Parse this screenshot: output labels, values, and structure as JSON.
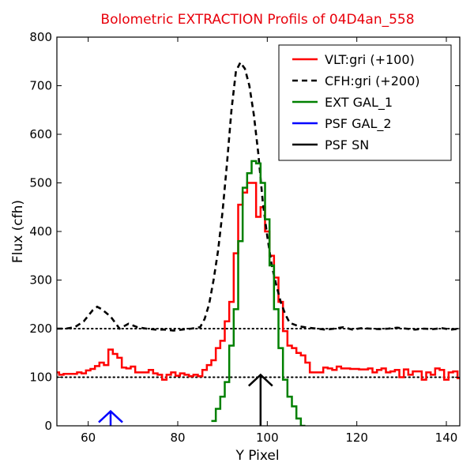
{
  "chart_data": {
    "type": "line",
    "title": "Bolometric EXTRACTION Profils of 04D4an_558",
    "xlabel": "Y Pixel",
    "ylabel": "Flux (cfh)",
    "xlim": [
      53,
      143
    ],
    "ylim": [
      0,
      800
    ],
    "xticks": [
      60,
      80,
      100,
      120,
      140
    ],
    "yticks": [
      0,
      100,
      200,
      300,
      400,
      500,
      600,
      700,
      800
    ],
    "grid": false,
    "legend_position": "top-right",
    "reference_lines": [
      100,
      200
    ],
    "series": [
      {
        "name": "VLT:gri (+100)",
        "style": "steps",
        "color": "#ff0000",
        "x": [
          53,
          54,
          55,
          56,
          57,
          58,
          59,
          60,
          61,
          62,
          63,
          64,
          65,
          66,
          67,
          68,
          69,
          70,
          71,
          72,
          73,
          74,
          75,
          76,
          77,
          78,
          79,
          80,
          81,
          82,
          83,
          84,
          85,
          86,
          87,
          88,
          89,
          90,
          91,
          92,
          93,
          94,
          95,
          96,
          97,
          98,
          99,
          100,
          101,
          102,
          103,
          104,
          105,
          106,
          107,
          108,
          109,
          110,
          111,
          112,
          113,
          114,
          115,
          116,
          117,
          118,
          119,
          120,
          121,
          122,
          123,
          124,
          125,
          126,
          127,
          128,
          129,
          130,
          131,
          132,
          133,
          134,
          135,
          136,
          137,
          138,
          139,
          140,
          141,
          142,
          143
        ],
        "y": [
          110,
          105,
          107,
          107,
          107,
          110,
          108,
          114,
          117,
          123,
          130,
          125,
          157,
          148,
          140,
          120,
          118,
          122,
          110,
          110,
          110,
          115,
          108,
          105,
          95,
          105,
          110,
          103,
          108,
          105,
          102,
          105,
          102,
          115,
          125,
          135,
          160,
          175,
          215,
          255,
          355,
          455,
          480,
          500,
          500,
          430,
          450,
          400,
          350,
          305,
          255,
          195,
          165,
          160,
          150,
          145,
          130,
          110,
          110,
          110,
          120,
          118,
          115,
          122,
          118,
          118,
          117,
          117,
          116,
          116,
          118,
          110,
          115,
          118,
          110,
          112,
          115,
          100,
          116,
          105,
          112,
          112,
          95,
          110,
          105,
          118,
          115,
          95,
          110,
          112,
          98
        ],
        "offset_shown": 100
      },
      {
        "name": "CFH:gri (+200)",
        "style": "dashed",
        "color": "#000000",
        "x": [
          53,
          55,
          57,
          59,
          61,
          62,
          63,
          65,
          67,
          69,
          71,
          73,
          75,
          77,
          79,
          81,
          83,
          85,
          86,
          87,
          88,
          89,
          90,
          91,
          92,
          93,
          94,
          95,
          96,
          97,
          98,
          99,
          100,
          101,
          102,
          103,
          104,
          105,
          107,
          109,
          111,
          113,
          115,
          117,
          119,
          121,
          123,
          125,
          127,
          129,
          131,
          133,
          135,
          137,
          139,
          141,
          143
        ],
        "y": [
          200,
          200,
          203,
          215,
          238,
          245,
          240,
          225,
          200,
          210,
          203,
          200,
          198,
          198,
          196,
          198,
          200,
          203,
          220,
          250,
          300,
          360,
          440,
          540,
          650,
          730,
          748,
          735,
          700,
          640,
          560,
          460,
          390,
          330,
          290,
          255,
          230,
          212,
          205,
          202,
          200,
          198,
          200,
          203,
          198,
          201,
          200,
          199,
          200,
          202,
          200,
          198,
          200,
          199,
          201,
          198,
          200
        ],
        "offset_shown": 200
      },
      {
        "name": "EXT GAL_1",
        "style": "steps",
        "color": "#008000",
        "x": [
          88,
          89,
          90,
          91,
          92,
          93,
          94,
          95,
          96,
          97,
          98,
          99,
          100,
          101,
          102,
          103,
          104,
          105,
          106,
          107,
          108
        ],
        "y": [
          10,
          35,
          60,
          90,
          165,
          240,
          380,
          490,
          520,
          545,
          540,
          500,
          425,
          330,
          240,
          160,
          95,
          60,
          40,
          15,
          0
        ]
      },
      {
        "name": "PSF GAL_2",
        "style": "marker",
        "color": "#0000ff",
        "x": [
          65
        ],
        "y": [
          30
        ]
      },
      {
        "name": "PSF SN",
        "style": "marker",
        "color": "#000000",
        "x": [
          98.5
        ],
        "y": [
          105
        ]
      }
    ]
  }
}
